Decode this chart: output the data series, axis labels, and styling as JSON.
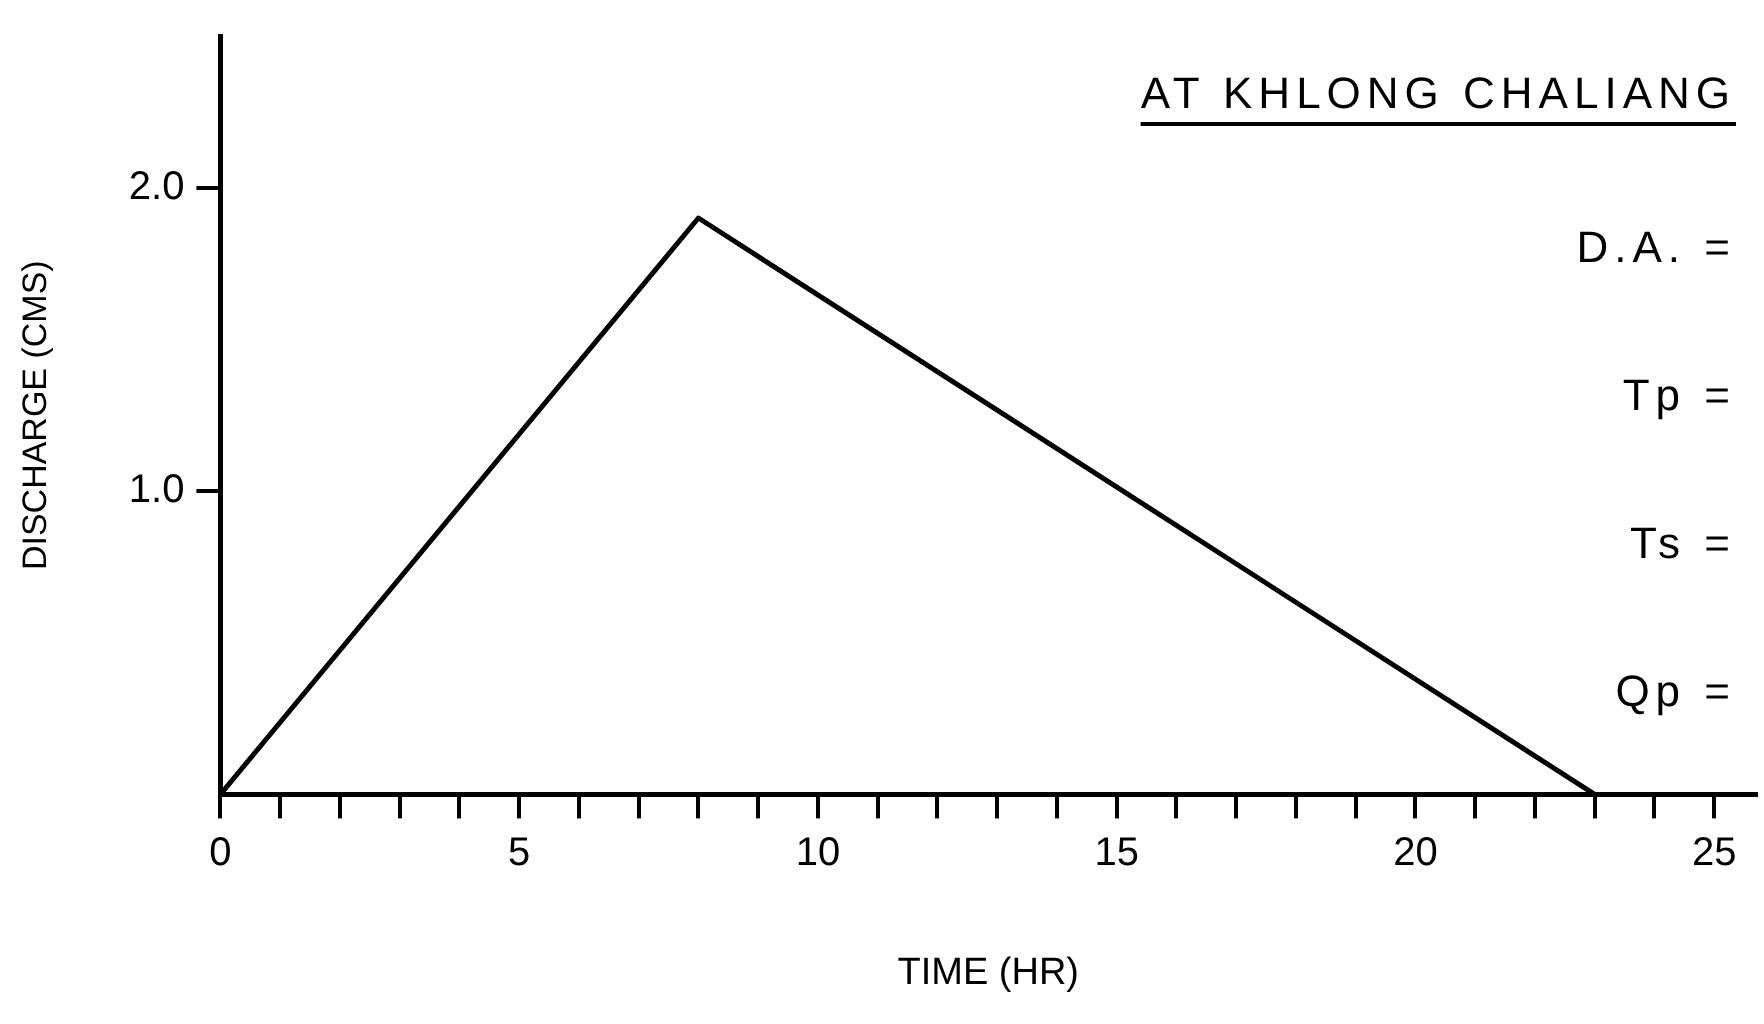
{
  "chart_data": {
    "type": "line",
    "xlabel": "TIME (HR)",
    "ylabel": "DISCHARGE (CMS)",
    "x": [
      0,
      8,
      23
    ],
    "values": [
      0,
      1.9,
      0
    ],
    "color": "#000000",
    "xlim": [
      0,
      25.7
    ],
    "ylim": [
      0,
      2.5
    ],
    "xticks": [
      {
        "value": 0,
        "label": "0"
      },
      {
        "value": 1,
        "label": null
      },
      {
        "value": 2,
        "label": null
      },
      {
        "value": 3,
        "label": null
      },
      {
        "value": 4,
        "label": null
      },
      5,
      {
        "value": 6,
        "label": null
      },
      {
        "value": 7,
        "label": null
      },
      {
        "value": 8,
        "label": null
      },
      {
        "value": 9,
        "label": null
      },
      10,
      {
        "value": 11,
        "label": null
      },
      {
        "value": 12,
        "label": null
      },
      {
        "value": 13,
        "label": null
      },
      {
        "value": 14,
        "label": null
      },
      15,
      {
        "value": 16,
        "label": null
      },
      {
        "value": 17,
        "label": null
      },
      {
        "value": 18,
        "label": null
      },
      {
        "value": 19,
        "label": null
      },
      20,
      {
        "value": 21,
        "label": null
      },
      {
        "value": 22,
        "label": null
      },
      {
        "value": 23,
        "label": null
      },
      {
        "value": 24,
        "label": null
      },
      25
    ],
    "yticks": [
      {
        "value": 1,
        "label": "1.0"
      },
      {
        "value": 2,
        "label": "2.0"
      }
    ],
    "annotations": [
      "AT KHLONG CHALIANG",
      "D.A. =",
      "Tp =",
      "Ts =",
      "Qp ="
    ],
    "grid": false,
    "legend": false,
    "marker": "none",
    "line_style": "solid"
  }
}
